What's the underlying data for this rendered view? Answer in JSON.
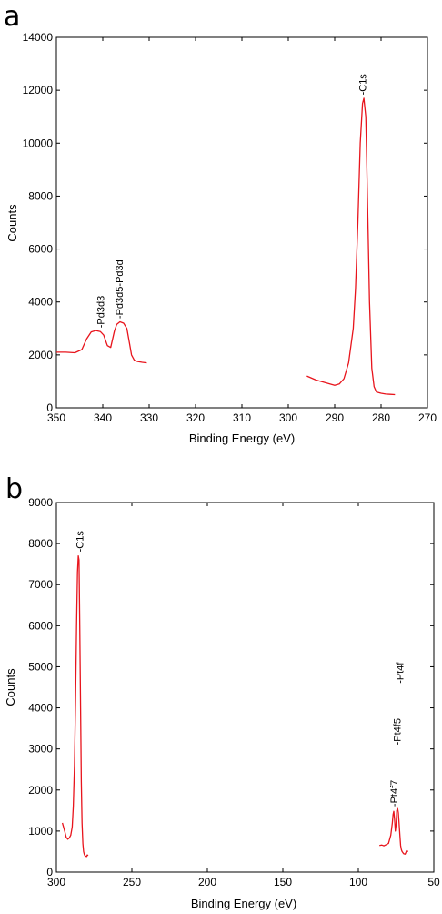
{
  "chart_data": [
    {
      "type": "line",
      "panel_label": "a",
      "xlabel": "Binding Energy (eV)",
      "ylabel": "Counts",
      "xlim": [
        350,
        270
      ],
      "ylim": [
        0,
        14000
      ],
      "x_reversed": true,
      "xticks": [
        350,
        340,
        330,
        320,
        310,
        300,
        290,
        280,
        270
      ],
      "yticks": [
        0,
        2000,
        4000,
        6000,
        8000,
        10000,
        12000,
        14000
      ],
      "series": [
        {
          "color": "#e8141c",
          "segments": [
            {
              "x": [
                350,
                348,
                346,
                344.5,
                343.5,
                342.5,
                341.5,
                340.5,
                339.8,
                339,
                338.3,
                337.5,
                337,
                336.3,
                335.5,
                334.8,
                334.2,
                333.8,
                333.2,
                332.5,
                331.5,
                330.5
              ],
              "y": [
                2100,
                2100,
                2080,
                2200,
                2600,
                2870,
                2920,
                2880,
                2750,
                2350,
                2280,
                2900,
                3150,
                3250,
                3200,
                3000,
                2400,
                2000,
                1800,
                1750,
                1720,
                1700
              ]
            },
            {
              "x": [
                296,
                294,
                292,
                290,
                289,
                288,
                287,
                286,
                285.5,
                285,
                284.5,
                284,
                283.7,
                283.3,
                283,
                282.5,
                282,
                281.5,
                281,
                280,
                279,
                278,
                277
              ],
              "y": [
                1200,
                1050,
                950,
                850,
                900,
                1100,
                1700,
                3000,
                4500,
                7000,
                10000,
                11500,
                11700,
                11000,
                8500,
                4000,
                1500,
                800,
                600,
                550,
                520,
                510,
                500
              ]
            }
          ]
        }
      ],
      "annotations": [
        {
          "text": "-Pd3d3",
          "x": 340.5,
          "y": 2950
        },
        {
          "text": "-Pd3d5-Pd3d",
          "x": 336.5,
          "y": 3300
        },
        {
          "text": "-C1s",
          "x": 284,
          "y": 11750
        }
      ]
    },
    {
      "type": "line",
      "panel_label": "b",
      "xlabel": "Binding Energy (eV)",
      "ylabel": "Counts",
      "xlim": [
        300,
        50
      ],
      "ylim": [
        0,
        9000
      ],
      "x_reversed": true,
      "xticks": [
        300,
        250,
        200,
        150,
        100,
        50
      ],
      "yticks": [
        0,
        1000,
        2000,
        3000,
        4000,
        5000,
        6000,
        7000,
        8000,
        9000
      ],
      "series": [
        {
          "color": "#e8141c",
          "segments": [
            {
              "x": [
                296,
                294.5,
                293.5,
                292.5,
                291.5,
                290.5,
                289.5,
                288.8,
                288,
                287.3,
                286.6,
                286,
                285.5,
                285,
                284.5,
                284,
                283.5,
                283,
                282.5,
                282,
                281.5,
                281,
                280,
                279.5,
                279
              ],
              "y": [
                1200,
                1000,
                850,
                800,
                830,
                900,
                1100,
                1600,
                2600,
                4200,
                6000,
                7300,
                7700,
                7600,
                6000,
                4000,
                2200,
                1200,
                700,
                500,
                430,
                400,
                380,
                420,
                400
              ]
            },
            {
              "x": [
                86,
                84.5,
                83,
                81.5,
                80,
                78.5,
                77.5,
                77,
                76.5,
                76,
                75.5,
                75,
                74.5,
                74,
                73.5,
                73,
                72.5,
                72,
                71.5,
                71,
                70,
                69,
                68,
                67
              ],
              "y": [
                650,
                660,
                640,
                670,
                700,
                900,
                1200,
                1400,
                1480,
                1300,
                1000,
                1150,
                1500,
                1550,
                1450,
                1200,
                900,
                650,
                550,
                500,
                450,
                440,
                520,
                500
              ]
            }
          ]
        }
      ],
      "annotations": [
        {
          "text": "-C1s",
          "x": 284.5,
          "y": 7750
        },
        {
          "text": "-Pt4f7",
          "x": 76.5,
          "y": 1550
        },
        {
          "text": "-Pt4f5",
          "x": 74.5,
          "y": 3050
        },
        {
          "text": "-Pt4f",
          "x": 72.5,
          "y": 4550
        }
      ]
    }
  ]
}
